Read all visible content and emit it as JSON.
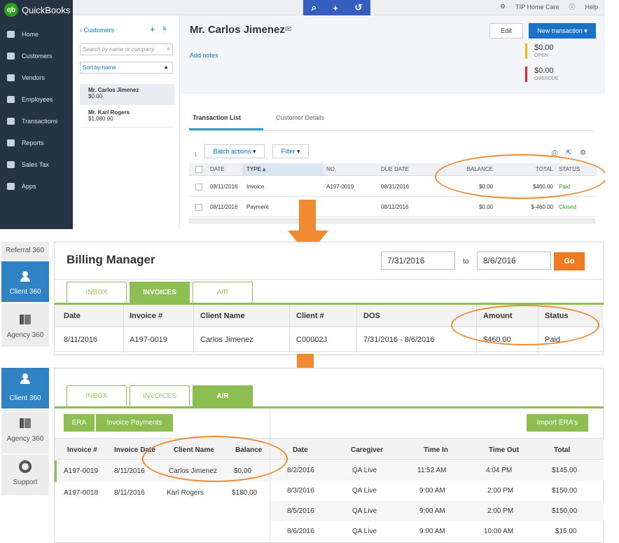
{
  "quickbooks": {
    "logo": "QuickBooks",
    "logo_badge": "qb",
    "nav": [
      "Home",
      "Customers",
      "Vendors",
      "Employees",
      "Transactions",
      "Reports",
      "Sales Tax",
      "Apps"
    ],
    "topbar": {
      "company": "TIP Home Care",
      "help": "Help"
    },
    "list": {
      "back_label": "Customers",
      "search_placeholder": "Search by name or company",
      "sort_label": "Sort by name",
      "customers": [
        {
          "name": "Mr. Carlos Jimenez",
          "balance": "$0.00"
        },
        {
          "name": "Mr. Karl Rogers",
          "balance": "$1,080.00"
        }
      ]
    },
    "customer": {
      "name": "Mr. Carlos Jimenez",
      "add_notes": "Add notes",
      "edit_label": "Edit",
      "new_transaction_label": "New transaction ▾",
      "open_amount": "$0.00",
      "open_label": "OPEN",
      "overdue_amount": "$0.00",
      "overdue_label": "OVERDUE"
    },
    "tabs": [
      "Transaction List",
      "Customer Details"
    ],
    "batch_actions": "Batch actions",
    "filter": "Filter",
    "columns": [
      "DATE",
      "TYPE ▴",
      "NO.",
      "DUE DATE",
      "BALANCE",
      "TOTAL",
      "STATUS"
    ],
    "rows": [
      {
        "date": "08/11/2016",
        "type": "Invoice",
        "no": "A197-0019",
        "due": "08/31/2016",
        "balance": "$0.00",
        "total": "$460.00",
        "status": "Paid"
      },
      {
        "date": "08/11/2016",
        "type": "Payment",
        "no": "",
        "due": "08/11/2016",
        "balance": "$0.00",
        "total": "$-460.00",
        "status": "Closed"
      }
    ]
  },
  "side_tabs": {
    "referral": "Referral 360",
    "client": "Client 360",
    "agency": "Agency 360",
    "support": "Support"
  },
  "billing": {
    "title": "Billing Manager",
    "from_date": "7/31/2016",
    "to_label": "to",
    "to_date": "8/6/2016",
    "go_label": "Go",
    "tabs": [
      "INBOX",
      "INVOICES",
      "A/R"
    ],
    "columns": [
      "Date",
      "Invoice #",
      "Client Name",
      "Client #",
      "DOS",
      "Amount",
      "Status"
    ],
    "rows": [
      {
        "date": "8/11/2016",
        "invoice": "A197-0019",
        "client": "Carlos Jimenez",
        "client_no": "C00002J",
        "dos": "7/31/2016 - 8/6/2016",
        "amount": "$460.00",
        "status": "Paid"
      }
    ]
  },
  "ar": {
    "tabs": [
      "INBOX",
      "INVOICES",
      "A/R"
    ],
    "era_label": "ERA",
    "invoice_payments_label": "Invoice Payments",
    "import_label": "Import ERA's",
    "left_columns": [
      "Invoice #",
      "Invoice Date",
      "Client Name",
      "Balance"
    ],
    "left_rows": [
      {
        "invoice": "A197-0019",
        "date": "8/11/2016",
        "client": "Carlos Jimenez",
        "balance": "$0.00"
      },
      {
        "invoice": "A197-0018",
        "date": "8/11/2016",
        "client": "Karl Rogers",
        "balance": "$180.00"
      }
    ],
    "right_columns": [
      "Date",
      "Caregiver",
      "Time In",
      "Time Out",
      "Total"
    ],
    "right_rows": [
      {
        "date": "8/2/2016",
        "caregiver": "QA Live",
        "in": "11:52 AM",
        "out": "4:04 PM",
        "total": "$145.00"
      },
      {
        "date": "8/3/2016",
        "caregiver": "QA Live",
        "in": "9:00 AM",
        "out": "2:00 PM",
        "total": "$150.00"
      },
      {
        "date": "8/5/2016",
        "caregiver": "QA Live",
        "in": "9:00 AM",
        "out": "2:00 PM",
        "total": "$150.00"
      },
      {
        "date": "8/6/2016",
        "caregiver": "QA Live",
        "in": "9:00 AM",
        "out": "10:00 AM",
        "total": "$15.00"
      }
    ]
  },
  "colors": {
    "accent_orange": "#f08a33",
    "green": "#8dbe52",
    "qb_blue": "#365ebf",
    "client_blue": "#2f83c4"
  }
}
